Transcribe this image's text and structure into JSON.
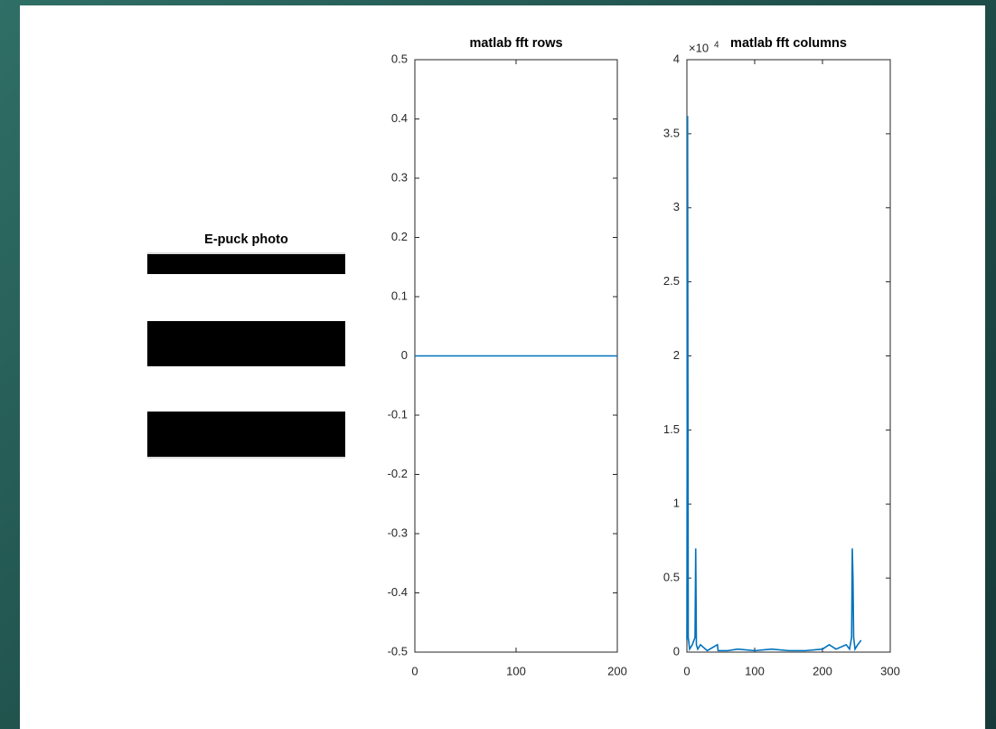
{
  "chart_data": [
    {
      "type": "image",
      "title": "E-puck photo"
    },
    {
      "type": "line",
      "title": "matlab fft rows",
      "x": [
        0,
        200
      ],
      "series": [
        {
          "color": "#0072bd",
          "values": [
            0,
            0
          ]
        }
      ],
      "xlim": [
        0,
        200
      ],
      "xticks": [
        0,
        100,
        200
      ],
      "ylim": [
        -0.5,
        0.5
      ],
      "yticks": [
        -0.5,
        -0.4,
        -0.3,
        -0.2,
        -0.1,
        0,
        0.1,
        0.2,
        0.3,
        0.4,
        0.5
      ]
    },
    {
      "type": "line",
      "title": "matlab fft columns",
      "y_multiplier": "×10",
      "y_multiplier_exponent": "4",
      "x": [
        0,
        1,
        2,
        4,
        8,
        12,
        13,
        14,
        16,
        20,
        30,
        45,
        46,
        60,
        75,
        100,
        125,
        150,
        175,
        200,
        210,
        220,
        235,
        240,
        243,
        244,
        245,
        246,
        248,
        252,
        257
      ],
      "series": [
        {
          "color": "#0072bd",
          "values": [
            0.08,
            3.62,
            0.1,
            0.02,
            0.05,
            0.1,
            0.7,
            0.05,
            0.02,
            0.05,
            0.01,
            0.05,
            0.01,
            0.01,
            0.02,
            0.01,
            0.02,
            0.01,
            0.01,
            0.02,
            0.05,
            0.02,
            0.05,
            0.02,
            0.1,
            0.7,
            0.5,
            0.1,
            0.02,
            0.05,
            0.08
          ]
        }
      ],
      "xlim": [
        0,
        300
      ],
      "xticks": [
        0,
        100,
        200,
        300
      ],
      "ylim": [
        0,
        4
      ],
      "yticks": [
        0,
        0.5,
        1,
        1.5,
        2,
        2.5,
        3,
        3.5,
        4
      ]
    }
  ]
}
